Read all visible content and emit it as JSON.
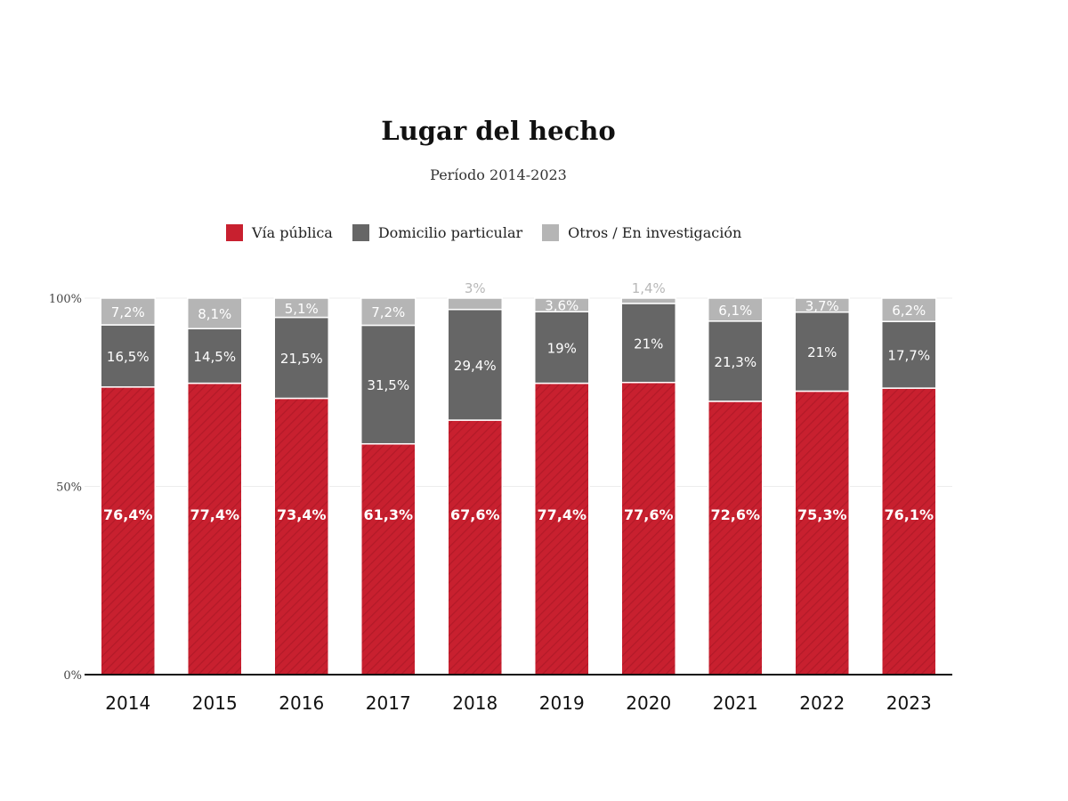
{
  "title": "Lugar del hecho",
  "subtitle": "Período 2014-2023",
  "colors": {
    "via": "#c8202f",
    "domicilio": "#666666",
    "otros": "#b5b5b5",
    "label_light": "#ffffff",
    "label_outside": "#b8b8b8"
  },
  "legend": [
    {
      "name": "Vía pública",
      "color": "#c8202f"
    },
    {
      "name": "Domicilio particular",
      "color": "#666666"
    },
    {
      "name": "Otros / En investigación",
      "color": "#b5b5b5"
    }
  ],
  "chart_data": {
    "type": "bar",
    "stacked": true,
    "categories": [
      "2014",
      "2015",
      "2016",
      "2017",
      "2018",
      "2019",
      "2020",
      "2021",
      "2022",
      "2023"
    ],
    "ylim": [
      0,
      100
    ],
    "yticks": [
      {
        "value": 0,
        "label": "0%"
      },
      {
        "value": 50,
        "label": "50%"
      },
      {
        "value": 100,
        "label": "100%"
      }
    ],
    "grid": true,
    "legend_position": "top",
    "series": [
      {
        "name": "Vía pública",
        "values": [
          76.4,
          77.4,
          73.4,
          61.3,
          67.6,
          77.4,
          77.6,
          72.6,
          75.3,
          76.1
        ],
        "labels": [
          "76,4%",
          "77,4%",
          "73,4%",
          "61,3%",
          "67,6%",
          "77,4%",
          "77,6%",
          "72,6%",
          "75,3%",
          "76,1%"
        ]
      },
      {
        "name": "Domicilio particular",
        "values": [
          16.5,
          14.5,
          21.5,
          31.5,
          29.4,
          19,
          21,
          21.3,
          21,
          17.7
        ],
        "labels": [
          "16,5%",
          "14,5%",
          "21,5%",
          "31,5%",
          "29,4%",
          "19%",
          "21%",
          "21,3%",
          "21%",
          "17,7%"
        ]
      },
      {
        "name": "Otros / En investigación",
        "values": [
          7.2,
          8.1,
          5.1,
          7.2,
          3,
          3.6,
          1.4,
          6.1,
          3.7,
          6.2
        ],
        "labels": [
          "7,2%",
          "8,1%",
          "5,1%",
          "7,2%",
          "3%",
          "3,6%",
          "1,4%",
          "6,1%",
          "3,7%",
          "6,2%"
        ]
      }
    ]
  }
}
